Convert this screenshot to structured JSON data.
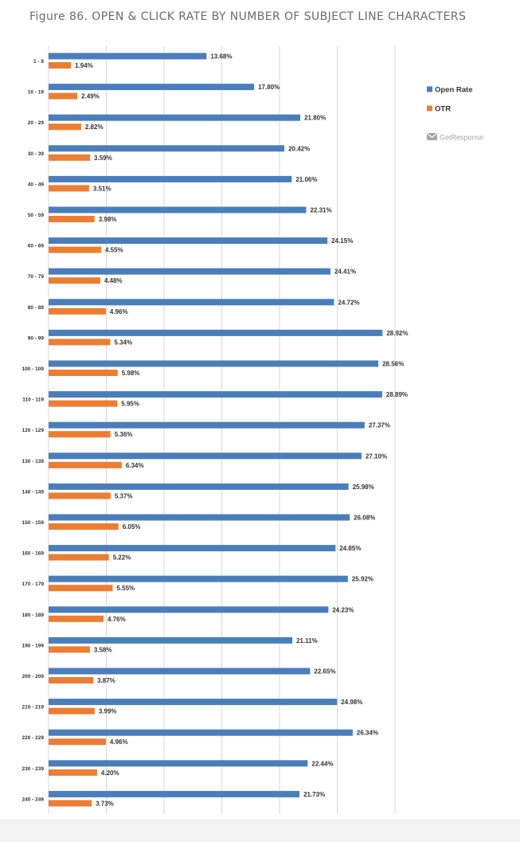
{
  "figure_title": "Figure 86. OPEN & CLICK RATE BY NUMBER OF SUBJECT LINE CHARACTERS",
  "brand": {
    "name": "GetResponse",
    "icon": "envelope-icon"
  },
  "colors": {
    "open_rate": "#4a7ebb",
    "otr": "#ed7d31",
    "grid": "#d9d9d9",
    "text": "#333333",
    "brand": "#a6a6a6"
  },
  "chart_data": {
    "type": "bar",
    "orientation": "horizontal",
    "categories": [
      "1 - 9",
      "10 - 19",
      "20 - 29",
      "30 - 39",
      "40 - 49",
      "50 - 59",
      "60 - 69",
      "70 - 79",
      "80 - 89",
      "90 - 99",
      "100 - 109",
      "110 - 119",
      "120 - 129",
      "130 - 139",
      "140 - 149",
      "150 - 159",
      "160 - 169",
      "170 - 179",
      "180 - 189",
      "190 - 199",
      "200 - 209",
      "210 - 219",
      "220 - 229",
      "230 - 239",
      "240 - 249"
    ],
    "series": [
      {
        "name": "Open Rate",
        "color": "#4a7ebb",
        "values": [
          13.68,
          17.8,
          21.8,
          20.42,
          21.06,
          22.31,
          24.15,
          24.41,
          24.72,
          28.92,
          28.56,
          28.89,
          27.37,
          27.1,
          25.98,
          26.08,
          24.85,
          25.92,
          24.23,
          21.11,
          22.65,
          24.98,
          26.34,
          22.44,
          21.73
        ],
        "labels": [
          "13.68%",
          "17.80%",
          "21.80%",
          "20.42%",
          "21.06%",
          "22.31%",
          "24.15%",
          "24.41%",
          "24.72%",
          "28.92%",
          "28.56%",
          "28.89%",
          "27.37%",
          "27.10%",
          "25.98%",
          "26.08%",
          "24.85%",
          "25.92%",
          "24.23%",
          "21.11%",
          "22.65%",
          "24.98%",
          "26.34%",
          "22.44%",
          "21.73%"
        ]
      },
      {
        "name": "OTR",
        "color": "#ed7d31",
        "values": [
          1.94,
          2.49,
          2.82,
          3.59,
          3.51,
          3.98,
          4.55,
          4.48,
          4.96,
          5.34,
          5.98,
          5.95,
          5.36,
          6.34,
          5.37,
          6.05,
          5.22,
          5.55,
          4.76,
          3.58,
          3.87,
          3.99,
          4.96,
          4.2,
          3.73
        ],
        "labels": [
          "1.94%",
          "2.49%",
          "2.82%",
          "3.59%",
          "3.51%",
          "3.98%",
          "4.55%",
          "4.48%",
          "4.96%",
          "5.34%",
          "5.98%",
          "5.95%",
          "5.36%",
          "6.34%",
          "5.37%",
          "6.05%",
          "5.22%",
          "5.55%",
          "4.76%",
          "3.58%",
          "3.87%",
          "3.99%",
          "4.96%",
          "4.20%",
          "3.73%"
        ]
      }
    ],
    "xlim": [
      0,
      30
    ],
    "grid": true,
    "legend": "right"
  }
}
